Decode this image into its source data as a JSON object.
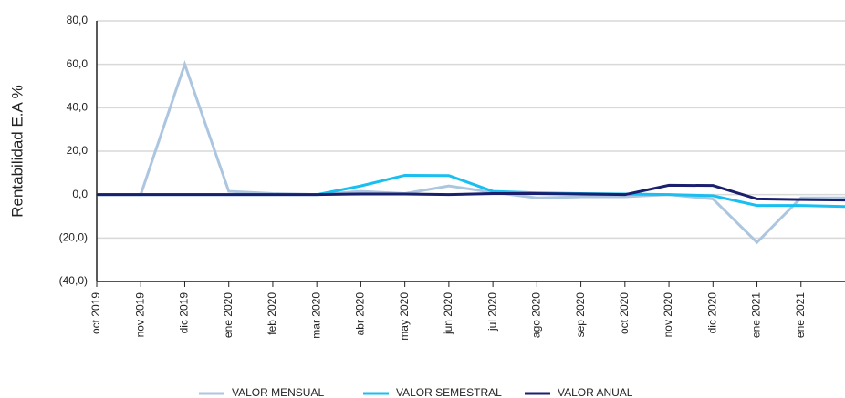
{
  "chart_data": {
    "type": "line",
    "y_label": "Rentabilidad E.A %",
    "categories": [
      "oct 2019",
      "nov 2019",
      "dic 2019",
      "ene 2020",
      "feb 2020",
      "mar 2020",
      "abr 2020",
      "may 2020",
      "jun 2020",
      "jul 2020",
      "ago 2020",
      "sep 2020",
      "oct 2020",
      "nov 2020",
      "dic 2020",
      "ene 2021",
      "ene 2021",
      null
    ],
    "series": [
      {
        "name": "VALOR MENSUAL",
        "color": "#adc6e0",
        "values": [
          0,
          0,
          60,
          1.5,
          0.5,
          0,
          1.5,
          0.5,
          4,
          1,
          -1.5,
          -1,
          -1,
          0,
          -2,
          -22,
          -1.5,
          -1.5
        ]
      },
      {
        "name": "VALOR SEMESTRAL",
        "color": "#18bff0",
        "values": [
          0,
          0,
          0,
          0,
          0,
          0,
          4,
          8.9,
          8.8,
          1.5,
          0.8,
          0.5,
          0.3,
          0,
          -0.5,
          -5,
          -5,
          -5.5
        ]
      },
      {
        "name": "VALOR ANUAL",
        "color": "#1a1f6e",
        "values": [
          0,
          0,
          0,
          0,
          0,
          0,
          0.3,
          0.3,
          0,
          0.5,
          0.5,
          0.3,
          0,
          4.3,
          4.2,
          -2,
          -2.3,
          -2.5
        ]
      }
    ],
    "ylim": [
      -40,
      80
    ],
    "yticks": [
      {
        "value": -40,
        "label": "(40,0)"
      },
      {
        "value": -20,
        "label": "(20,0)"
      },
      {
        "value": 0,
        "label": "0,0"
      },
      {
        "value": 20,
        "label": "20,0"
      },
      {
        "value": 40,
        "label": "40,0"
      },
      {
        "value": 60,
        "label": "60,0"
      },
      {
        "value": 80,
        "label": "80,0"
      }
    ],
    "grid": true,
    "legend": "bottom"
  }
}
